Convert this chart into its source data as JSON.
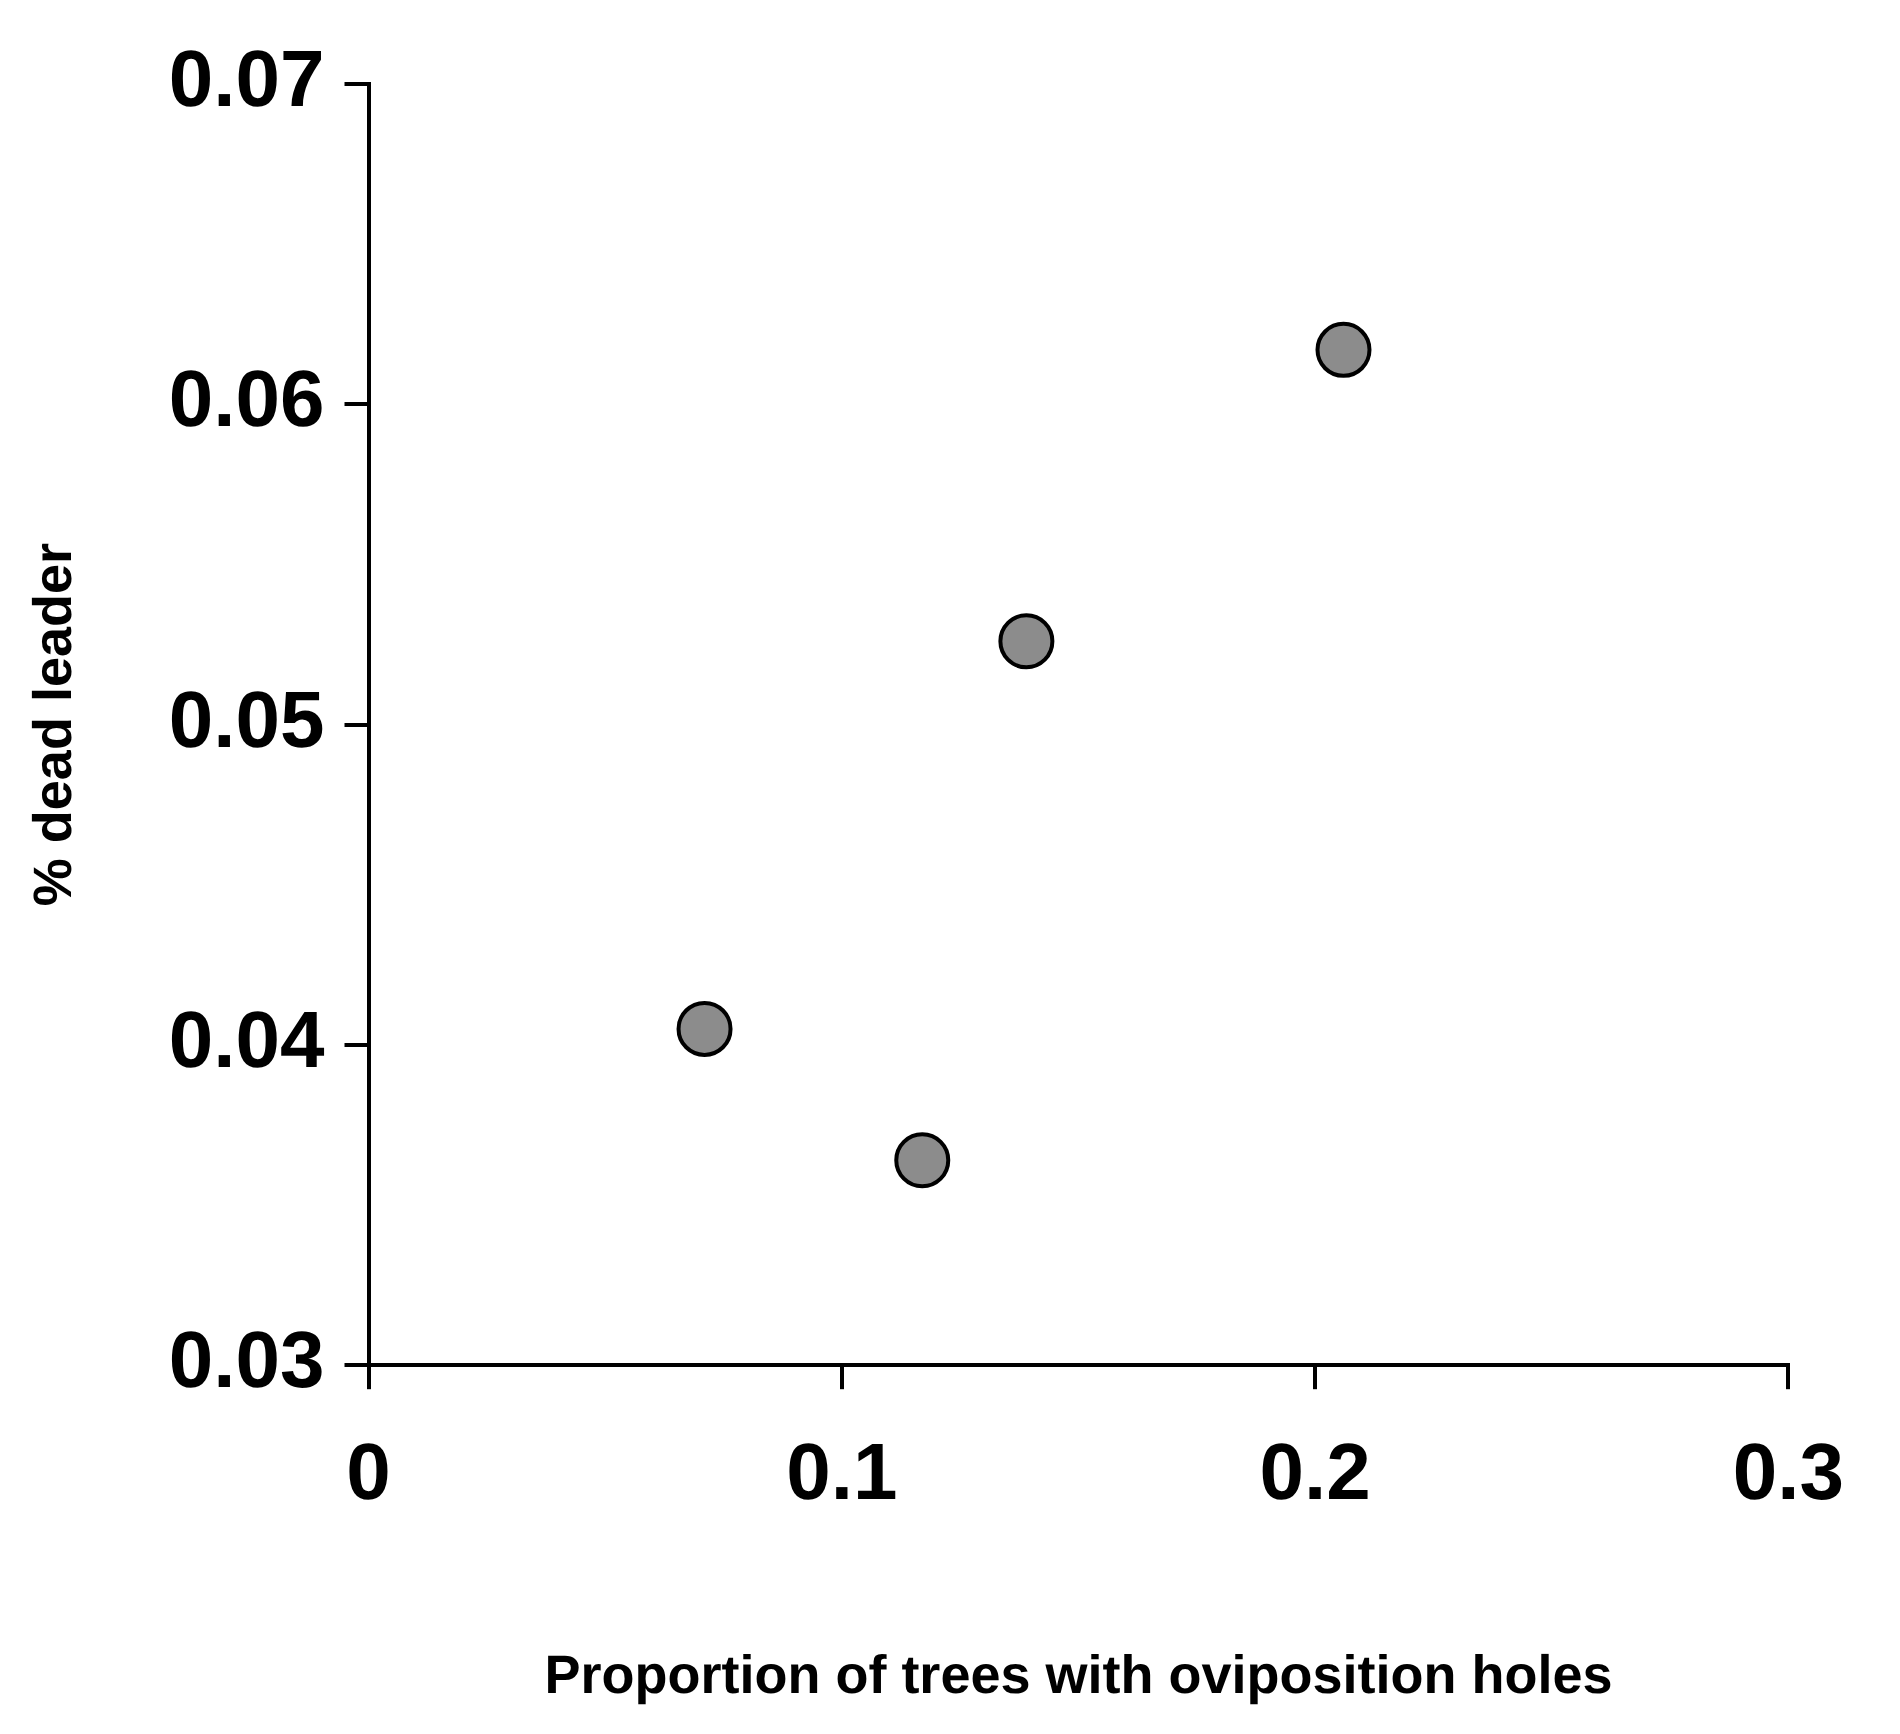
{
  "chart_data": {
    "type": "scatter",
    "xlabel": "Proportion of trees with oviposition holes",
    "ylabel": "% dead leader",
    "x": [
      0.071,
      0.117,
      0.139,
      0.206
    ],
    "values": [
      0.0405,
      0.0364,
      0.0526,
      0.0617
    ],
    "color": "#8c8c8c",
    "marker": "circle",
    "grid": false,
    "legend": false,
    "xlim": [
      0,
      0.3
    ],
    "xticks": [
      0,
      0.1,
      0.2,
      0.3
    ],
    "ylim": [
      0.03,
      0.07
    ],
    "yticks": [
      0.03,
      0.04,
      0.05,
      0.06,
      0.07
    ]
  }
}
